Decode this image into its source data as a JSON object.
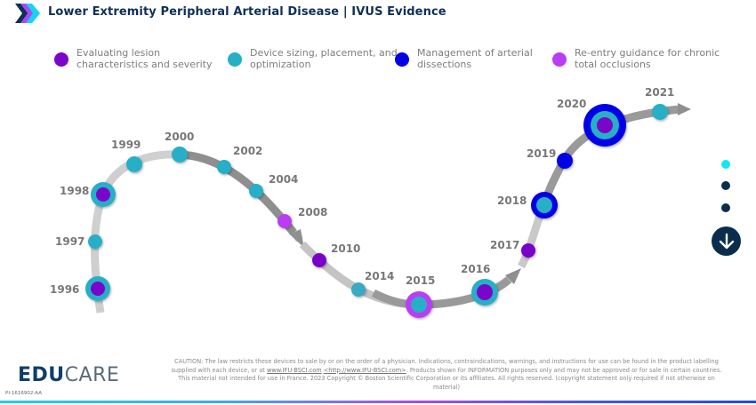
{
  "header": {
    "title": "Lower Extremity Peripheral Arterial Disease | IVUS Evidence",
    "logo_icon": "chevron-arrows-icon"
  },
  "colors": {
    "purple": "#7a06c9",
    "teal": "#27afc6",
    "blue": "#0202e6",
    "violet": "#b93df5",
    "navy": "#0b2d4d",
    "cyan": "#16e4f8",
    "track": "#c4c4c4"
  },
  "legend": [
    {
      "label": "Evaluating lesion characteristics and severity",
      "color": "#7a06c9"
    },
    {
      "label": "Device sizing, placement, and, optimization",
      "color": "#27afc6"
    },
    {
      "label": "Management of arterial dissections",
      "color": "#0202e6"
    },
    {
      "label": "Re-entry guidance for chronic total occlusions",
      "color": "#b93df5"
    }
  ],
  "timeline": [
    {
      "year": "1996",
      "colors": [
        "#27afc6",
        "#7a06c9"
      ]
    },
    {
      "year": "1997",
      "colors": [
        "#27afc6"
      ]
    },
    {
      "year": "1998",
      "colors": [
        "#27afc6",
        "#7a06c9"
      ]
    },
    {
      "year": "1999",
      "colors": [
        "#27afc6"
      ]
    },
    {
      "year": "2000",
      "colors": [
        "#27afc6"
      ]
    },
    {
      "year": "2002",
      "colors": [
        "#27afc6"
      ]
    },
    {
      "year": "2004",
      "colors": [
        "#27afc6"
      ]
    },
    {
      "year": "2008",
      "colors": [
        "#b93df5"
      ]
    },
    {
      "year": "2010",
      "colors": [
        "#7a06c9"
      ]
    },
    {
      "year": "2014",
      "colors": [
        "#3aa8c4"
      ]
    },
    {
      "year": "2015",
      "colors": [
        "#b93df5",
        "#27afc6"
      ]
    },
    {
      "year": "2016",
      "colors": [
        "#27afc6",
        "#7a06c9"
      ]
    },
    {
      "year": "2017",
      "colors": [
        "#7a06c9"
      ]
    },
    {
      "year": "2018",
      "colors": [
        "#0202e6",
        "#27afc6"
      ]
    },
    {
      "year": "2019",
      "colors": [
        "#0202e6"
      ]
    },
    {
      "year": "2020",
      "colors": [
        "#0202e6",
        "#27afc6",
        "#7a06c9"
      ]
    },
    {
      "year": "2021",
      "colors": [
        "#27afc6"
      ]
    }
  ],
  "pager": {
    "dots": [
      {
        "active": true
      },
      {
        "active": false
      },
      {
        "active": false
      }
    ],
    "next_icon": "arrow-down-icon"
  },
  "footer": {
    "caution_1": "CAUTION: The law restricts these devices to sale by or on the order of a physician. Indications, contraindications, warnings, and instructions for use can be found in the product labelling supplied with each device, or at ",
    "link_1": "www.IFU-BSCI.com",
    "link_2": "<http://www.IFU-BSCI.com>",
    "caution_2": ". Products shown for INFORMATION purposes only and may not be approved or for sale in certain countries. This material not intended for use in France. 2023 Copyright © Boston Scientific Corporation or its affiliates. All rights reserved. (copyright statement only required if not otherwise on material)",
    "brand_bold": "EDU",
    "brand_light": "CARE",
    "code": "PI-1616902-AA"
  }
}
